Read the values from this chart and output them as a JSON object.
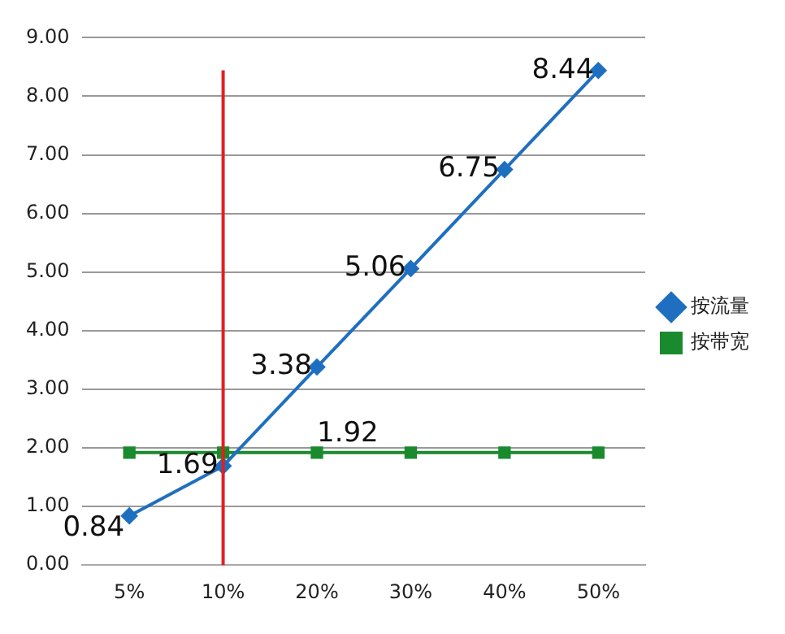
{
  "chart_data": {
    "type": "line",
    "categories": [
      "5%",
      "10%",
      "20%",
      "30%",
      "40%",
      "50%"
    ],
    "series": [
      {
        "name": "按流量",
        "color": "#1f6fc0",
        "marker": "diamond",
        "values": [
          0.84,
          1.69,
          3.38,
          5.06,
          6.75,
          8.44
        ],
        "value_labels": [
          "0.84",
          "1.69",
          "3.38",
          "5.06",
          "6.75",
          "8.44"
        ]
      },
      {
        "name": "按带宽",
        "color": "#1a8a2e",
        "marker": "square",
        "values": [
          1.92,
          1.92,
          1.92,
          1.92,
          1.92,
          1.92
        ],
        "value_labels": [
          null,
          null,
          "1.92",
          null,
          null,
          null
        ]
      }
    ],
    "ylim": [
      0,
      9
    ],
    "yticks": [
      {
        "value": 0,
        "label": "0.00"
      },
      {
        "value": 1,
        "label": "1.00"
      },
      {
        "value": 2,
        "label": "2.00"
      },
      {
        "value": 3,
        "label": "3.00"
      },
      {
        "value": 4,
        "label": "4.00"
      },
      {
        "value": 5,
        "label": "5.00"
      },
      {
        "value": 6,
        "label": "6.00"
      },
      {
        "value": 7,
        "label": "7.00"
      },
      {
        "value": 8,
        "label": "8.00"
      },
      {
        "value": 9,
        "label": "9.00"
      }
    ],
    "grid": "y",
    "legend": "right",
    "ref_lines": [
      {
        "axis": "x",
        "value": "10%",
        "color": "#e02020"
      }
    ]
  }
}
